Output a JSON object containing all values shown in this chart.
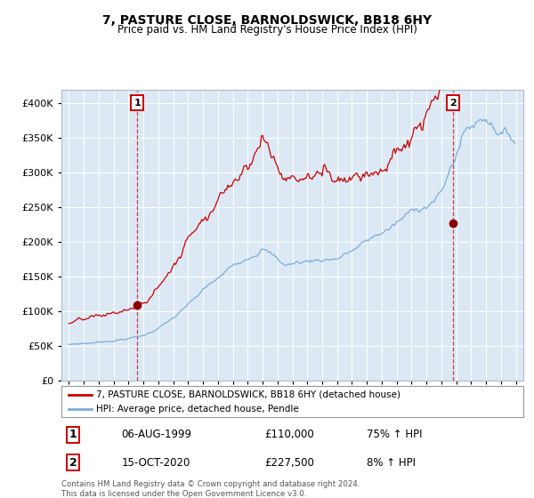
{
  "title": "7, PASTURE CLOSE, BARNOLDSWICK, BB18 6HY",
  "subtitle": "Price paid vs. HM Land Registry's House Price Index (HPI)",
  "sale1_date": "06-AUG-1999",
  "sale1_price": 110000,
  "sale1_label": "75% ↑ HPI",
  "sale1_year": 1999.59,
  "sale2_date": "15-OCT-2020",
  "sale2_price": 227500,
  "sale2_label": "8% ↑ HPI",
  "sale2_year": 2020.79,
  "legend_line1": "7, PASTURE CLOSE, BARNOLDSWICK, BB18 6HY (detached house)",
  "legend_line2": "HPI: Average price, detached house, Pendle",
  "footer": "Contains HM Land Registry data © Crown copyright and database right 2024.\nThis data is licensed under the Open Government Licence v3.0.",
  "property_color": "#cc0000",
  "hpi_color": "#7aaddb",
  "plot_bg_color": "#dce9f5",
  "ylim": [
    0,
    420000
  ],
  "yticks": [
    0,
    50000,
    100000,
    150000,
    200000,
    250000,
    300000,
    350000,
    400000
  ],
  "xlim_start": 1994.5,
  "xlim_end": 2025.5,
  "xticks": [
    1995,
    1996,
    1997,
    1998,
    1999,
    2000,
    2001,
    2002,
    2003,
    2004,
    2005,
    2006,
    2007,
    2008,
    2009,
    2010,
    2011,
    2012,
    2013,
    2014,
    2015,
    2016,
    2017,
    2018,
    2019,
    2020,
    2021,
    2022,
    2023,
    2024,
    2025
  ]
}
